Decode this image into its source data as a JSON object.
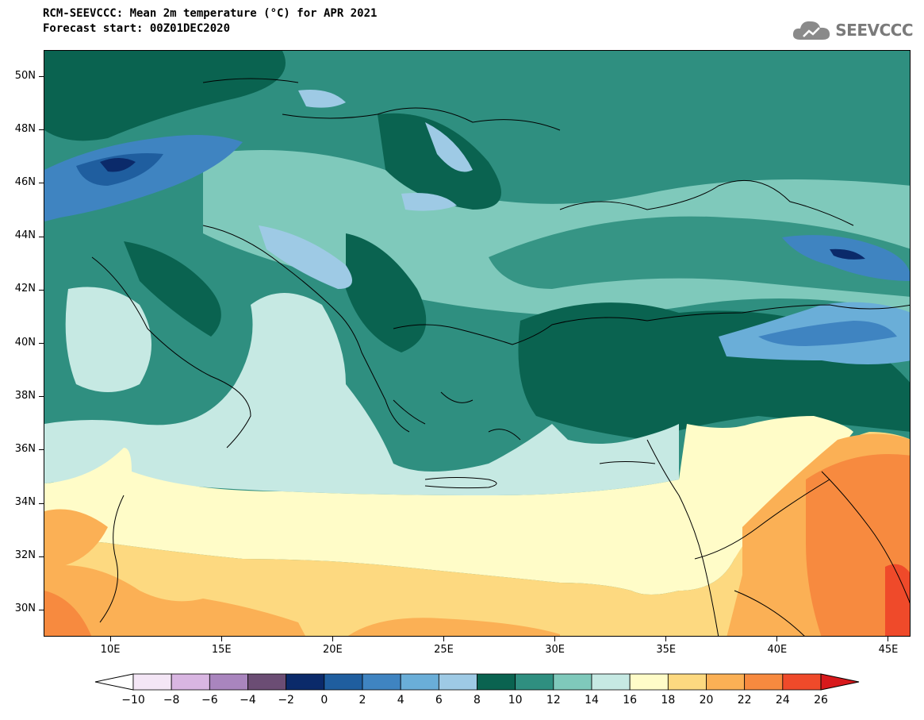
{
  "header": {
    "title": "RCM-SEEVCCC: Mean 2m temperature (°C) for APR 2021",
    "subtitle": "Forecast start: 00Z01DEC2020",
    "brand": "SEEVCCC",
    "brand_icon": "cloud-icon"
  },
  "map": {
    "lon_range": [
      7,
      46
    ],
    "lat_range": [
      29,
      51
    ],
    "yticks": [
      {
        "lat": 50,
        "label": "50N"
      },
      {
        "lat": 48,
        "label": "48N"
      },
      {
        "lat": 46,
        "label": "46N"
      },
      {
        "lat": 44,
        "label": "44N"
      },
      {
        "lat": 42,
        "label": "42N"
      },
      {
        "lat": 40,
        "label": "40N"
      },
      {
        "lat": 38,
        "label": "38N"
      },
      {
        "lat": 36,
        "label": "36N"
      },
      {
        "lat": 34,
        "label": "34N"
      },
      {
        "lat": 32,
        "label": "32N"
      },
      {
        "lat": 30,
        "label": "30N"
      }
    ],
    "xticks": [
      {
        "lon": 10,
        "label": "10E"
      },
      {
        "lon": 15,
        "label": "15E"
      },
      {
        "lon": 20,
        "label": "20E"
      },
      {
        "lon": 25,
        "label": "25E"
      },
      {
        "lon": 30,
        "label": "30E"
      },
      {
        "lon": 35,
        "label": "35E"
      },
      {
        "lon": 40,
        "label": "40E"
      },
      {
        "lon": 45,
        "label": "45E"
      }
    ]
  },
  "colorbar": {
    "labels": [
      "−10",
      "−8",
      "−6",
      "−4",
      "−2",
      "0",
      "2",
      "4",
      "6",
      "8",
      "10",
      "12",
      "14",
      "16",
      "18",
      "20",
      "22",
      "24",
      "26"
    ],
    "colors": [
      "#f4e6f6",
      "#d9b6e2",
      "#a985be",
      "#6b4d74",
      "#0b2a6a",
      "#1f5e9f",
      "#3f84c1",
      "#6aaed8",
      "#9ecae5",
      "#0a6350",
      "#2f8f80",
      "#7fc9bb",
      "#c6e9e3",
      "#fffcc8",
      "#fdd980",
      "#fbb055",
      "#f78a3f",
      "#ef4a2a"
    ],
    "under_color": "#ffffff",
    "over_color": "#d7191c"
  },
  "colors": {
    "north_bg": "#2f8f80",
    "sea": "#c6e9e3",
    "south_mid": "#fffcc8",
    "south": "#fbb055"
  }
}
